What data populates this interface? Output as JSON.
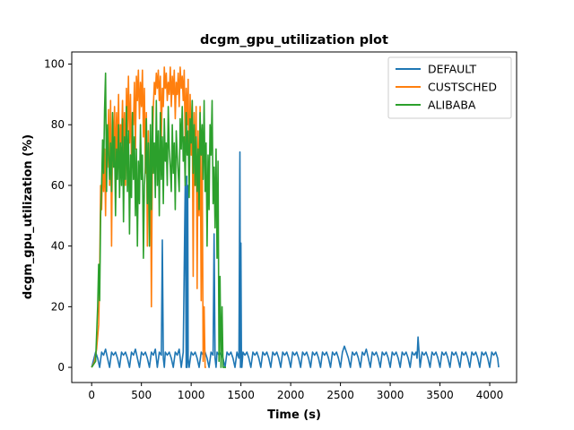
{
  "chart_data": {
    "type": "line",
    "title": "dcgm_gpu_utilization plot",
    "xlabel": "Time (s)",
    "ylabel": "dcgm_gpu_utilization (%)",
    "xlim": [
      -200,
      4270
    ],
    "ylim": [
      -5,
      104
    ],
    "xticks": [
      0,
      500,
      1000,
      1500,
      2000,
      2500,
      3000,
      3500,
      4000
    ],
    "yticks": [
      0,
      20,
      40,
      60,
      80,
      100
    ],
    "grid": false,
    "legend_position": "top-right",
    "series": [
      {
        "name": "DEFAULT",
        "color": "#1f77b4",
        "x": [
          0,
          40,
          60,
          80,
          100,
          120,
          140,
          160,
          180,
          200,
          220,
          240,
          260,
          280,
          300,
          320,
          340,
          360,
          380,
          400,
          420,
          440,
          460,
          480,
          500,
          520,
          540,
          560,
          580,
          600,
          620,
          640,
          660,
          680,
          700,
          710,
          720,
          730,
          740,
          760,
          780,
          800,
          820,
          840,
          860,
          880,
          900,
          920,
          940,
          950,
          955,
          960,
          965,
          970,
          980,
          1000,
          1020,
          1040,
          1060,
          1080,
          1100,
          1120,
          1140,
          1160,
          1180,
          1200,
          1220,
          1230,
          1240,
          1250,
          1260,
          1280,
          1300,
          1320,
          1340,
          1360,
          1380,
          1400,
          1420,
          1440,
          1460,
          1480,
          1490,
          1495,
          1500,
          1505,
          1510,
          1520,
          1540,
          1560,
          1580,
          1600,
          1620,
          1640,
          1660,
          1680,
          1700,
          1720,
          1740,
          1760,
          1780,
          1800,
          1820,
          1840,
          1860,
          1880,
          1900,
          1920,
          1940,
          1960,
          1980,
          2000,
          2020,
          2040,
          2060,
          2080,
          2100,
          2120,
          2140,
          2160,
          2180,
          2200,
          2220,
          2240,
          2260,
          2280,
          2300,
          2320,
          2340,
          2360,
          2380,
          2400,
          2420,
          2440,
          2460,
          2480,
          2500,
          2520,
          2540,
          2560,
          2580,
          2600,
          2620,
          2640,
          2660,
          2680,
          2700,
          2720,
          2740,
          2760,
          2780,
          2800,
          2820,
          2840,
          2860,
          2880,
          2900,
          2920,
          2940,
          2960,
          2980,
          3000,
          3020,
          3040,
          3060,
          3080,
          3100,
          3120,
          3140,
          3160,
          3180,
          3200,
          3220,
          3240,
          3260,
          3270,
          3280,
          3300,
          3320,
          3340,
          3360,
          3380,
          3400,
          3420,
          3440,
          3460,
          3480,
          3500,
          3520,
          3540,
          3560,
          3580,
          3600,
          3620,
          3640,
          3660,
          3680,
          3700,
          3720,
          3740,
          3760,
          3780,
          3800,
          3820,
          3840,
          3860,
          3880,
          3900,
          3920,
          3940,
          3960,
          3980,
          4000,
          4020,
          4040,
          4060,
          4080,
          4090
        ],
        "y": [
          0,
          5,
          3,
          0,
          5,
          4,
          6,
          3,
          0,
          5,
          4,
          5,
          3,
          0,
          5,
          4,
          5,
          3,
          0,
          5,
          4,
          6,
          3,
          0,
          5,
          4,
          5,
          3,
          0,
          5,
          4,
          6,
          0,
          5,
          4,
          42,
          3,
          0,
          5,
          4,
          5,
          3,
          0,
          5,
          4,
          6,
          0,
          5,
          60,
          0,
          63,
          0,
          60,
          3,
          0,
          5,
          4,
          5,
          3,
          0,
          5,
          4,
          5,
          3,
          0,
          5,
          4,
          44,
          3,
          0,
          5,
          4,
          5,
          3,
          0,
          5,
          4,
          5,
          3,
          0,
          5,
          3,
          71,
          0,
          41,
          3,
          0,
          5,
          4,
          5,
          3,
          0,
          5,
          4,
          5,
          3,
          0,
          5,
          4,
          5,
          3,
          0,
          5,
          4,
          5,
          3,
          0,
          5,
          4,
          5,
          3,
          0,
          5,
          4,
          5,
          3,
          0,
          5,
          4,
          5,
          3,
          0,
          5,
          4,
          5,
          3,
          0,
          5,
          4,
          5,
          3,
          0,
          5,
          4,
          5,
          3,
          0,
          5,
          7,
          5,
          3,
          0,
          5,
          4,
          5,
          3,
          0,
          5,
          4,
          6,
          3,
          0,
          5,
          4,
          5,
          3,
          0,
          5,
          4,
          5,
          3,
          0,
          5,
          4,
          5,
          3,
          0,
          5,
          4,
          5,
          3,
          0,
          5,
          4,
          5,
          3,
          10,
          0,
          5,
          4,
          5,
          3,
          0,
          5,
          4,
          5,
          3,
          0,
          5,
          4,
          5,
          3,
          0,
          5,
          4,
          5,
          3,
          0,
          5,
          4,
          5,
          3,
          0,
          5,
          4,
          5,
          3,
          0,
          5,
          4,
          5,
          3,
          0,
          5,
          4,
          5,
          3,
          0
        ]
      },
      {
        "name": "CUSTSCHED",
        "color": "#ff7f0e",
        "x": [
          0,
          30,
          50,
          70,
          80,
          90,
          100,
          110,
          120,
          130,
          140,
          150,
          160,
          170,
          180,
          190,
          200,
          210,
          220,
          230,
          240,
          250,
          260,
          270,
          280,
          290,
          300,
          310,
          320,
          330,
          340,
          350,
          360,
          370,
          380,
          390,
          400,
          410,
          420,
          430,
          440,
          450,
          460,
          470,
          480,
          490,
          500,
          510,
          520,
          530,
          540,
          550,
          560,
          570,
          580,
          590,
          600,
          610,
          620,
          630,
          640,
          650,
          660,
          670,
          680,
          690,
          700,
          710,
          720,
          730,
          740,
          750,
          760,
          770,
          780,
          790,
          800,
          810,
          820,
          830,
          840,
          850,
          860,
          870,
          880,
          890,
          900,
          910,
          920,
          930,
          940,
          950,
          960,
          970,
          980,
          990,
          1000,
          1010,
          1020,
          1030,
          1040,
          1050,
          1060,
          1070,
          1080,
          1090,
          1100,
          1110,
          1120,
          1130,
          1140,
          1150
        ],
        "y": [
          0,
          2,
          6,
          14,
          30,
          60,
          52,
          68,
          58,
          72,
          50,
          78,
          66,
          85,
          60,
          88,
          40,
          80,
          72,
          86,
          62,
          84,
          70,
          90,
          64,
          80,
          74,
          88,
          70,
          84,
          60,
          92,
          78,
          96,
          74,
          90,
          66,
          84,
          80,
          94,
          72,
          96,
          88,
          98,
          82,
          94,
          86,
          98,
          76,
          92,
          64,
          84,
          40,
          78,
          48,
          74,
          20,
          70,
          86,
          94,
          90,
          97,
          92,
          98,
          88,
          96,
          76,
          92,
          86,
          99,
          92,
          97,
          88,
          94,
          90,
          99,
          86,
          96,
          90,
          98,
          82,
          94,
          90,
          97,
          86,
          99,
          92,
          96,
          88,
          98,
          74,
          92,
          80,
          95,
          60,
          90,
          70,
          88,
          30,
          84,
          60,
          86,
          26,
          78,
          50,
          86,
          22,
          74,
          2,
          20,
          0,
          0
        ]
      },
      {
        "name": "ALIBABA",
        "color": "#2ca02c",
        "x": [
          0,
          40,
          60,
          70,
          80,
          90,
          100,
          110,
          120,
          130,
          140,
          150,
          160,
          170,
          180,
          190,
          200,
          210,
          220,
          230,
          240,
          250,
          260,
          270,
          280,
          290,
          300,
          310,
          320,
          330,
          340,
          350,
          360,
          370,
          380,
          390,
          400,
          410,
          420,
          430,
          440,
          450,
          460,
          470,
          480,
          490,
          500,
          510,
          520,
          530,
          540,
          550,
          560,
          570,
          580,
          590,
          600,
          610,
          620,
          630,
          640,
          650,
          660,
          670,
          680,
          690,
          700,
          710,
          720,
          730,
          740,
          750,
          760,
          770,
          780,
          790,
          800,
          810,
          820,
          830,
          840,
          850,
          860,
          870,
          880,
          890,
          900,
          910,
          920,
          930,
          940,
          950,
          960,
          970,
          980,
          990,
          1000,
          1010,
          1020,
          1030,
          1040,
          1050,
          1060,
          1070,
          1080,
          1090,
          1100,
          1110,
          1120,
          1130,
          1140,
          1150,
          1160,
          1170,
          1180,
          1190,
          1200,
          1210,
          1220,
          1230,
          1240,
          1250,
          1260,
          1270,
          1280,
          1290,
          1300,
          1310,
          1320,
          1330,
          1340,
          1350
        ],
        "y": [
          0,
          2,
          20,
          34,
          22,
          50,
          60,
          75,
          64,
          85,
          97,
          58,
          80,
          70,
          62,
          74,
          58,
          84,
          66,
          76,
          50,
          72,
          62,
          80,
          56,
          74,
          60,
          82,
          48,
          76,
          62,
          86,
          58,
          78,
          44,
          70,
          56,
          84,
          62,
          76,
          50,
          72,
          40,
          68,
          54,
          80,
          62,
          70,
          36,
          60,
          66,
          82,
          54,
          74,
          40,
          80,
          52,
          86,
          64,
          74,
          56,
          88,
          60,
          78,
          50,
          84,
          62,
          76,
          54,
          82,
          68,
          74,
          60,
          86,
          72,
          66,
          58,
          80,
          64,
          74,
          52,
          78,
          70,
          64,
          58,
          82,
          72,
          86,
          68,
          76,
          60,
          84,
          70,
          78,
          56,
          82,
          74,
          88,
          64,
          80,
          60,
          76,
          58,
          72,
          52,
          84,
          70,
          80,
          62,
          88,
          58,
          74,
          40,
          70,
          52,
          80,
          70,
          88,
          54,
          66,
          46,
          72,
          36,
          68,
          2,
          30,
          0,
          20,
          0,
          0,
          0,
          0
        ]
      }
    ]
  }
}
